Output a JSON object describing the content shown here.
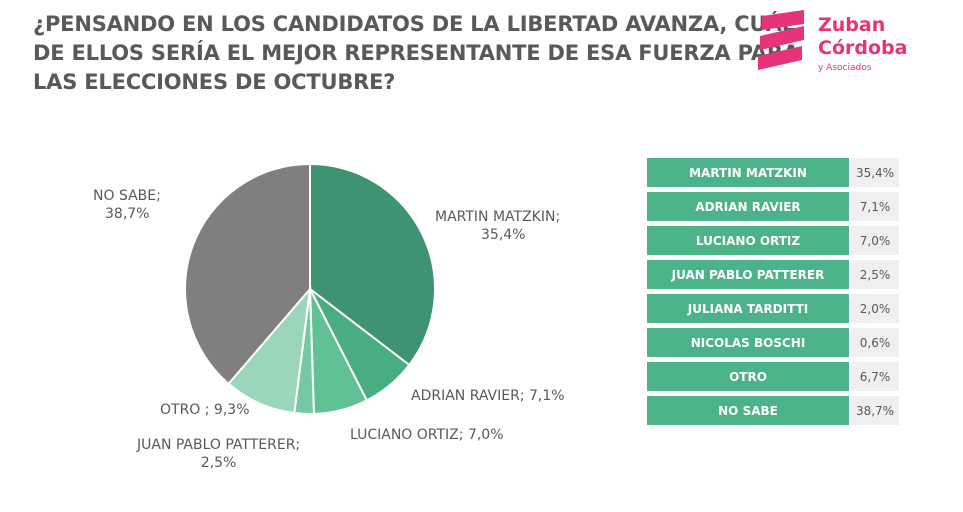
{
  "title": {
    "line1": "¿PENSANDO EN LOS CANDIDATOS DE LA LIBERTAD AVANZA, CUÁL",
    "line2": "DE ELLOS SERÍA EL MEJOR REPRESENTANTE DE ESA FUERZA PARA",
    "line3": "LAS ELECCIONES DE OCTUBRE?"
  },
  "logo": {
    "name_line1": "Zuban",
    "name_line2": "Córdoba",
    "tagline": "y Asociados",
    "color": "#e6337a"
  },
  "chart_data": {
    "type": "pie",
    "slices": [
      {
        "label": "MARTIN MATZKIN",
        "value": 35.4,
        "display_label": "MARTIN MATZKIN;",
        "display_value": "35,4%",
        "color": "#3e9470"
      },
      {
        "label": "ADRIAN RAVIER",
        "value": 7.1,
        "display_label": "ADRIAN RAVIER; 7,1%",
        "display_value": "",
        "color": "#49ad82"
      },
      {
        "label": "LUCIANO ORTIZ",
        "value": 7.0,
        "display_label": "LUCIANO ORTIZ; 7,0%",
        "display_value": "",
        "color": "#5fc194"
      },
      {
        "label": "JUAN PABLO PATTERER",
        "value": 2.5,
        "display_label": "JUAN PABLO PATTERER;",
        "display_value": "2,5%",
        "color": "#74c9a3"
      },
      {
        "label": "OTRO",
        "value": 9.3,
        "display_label": "OTRO ; 9,3%",
        "display_value": "",
        "color": "#9bd6bb"
      },
      {
        "label": "NO SABE",
        "value": 38.7,
        "display_label": "NO SABE;",
        "display_value": "38,7%",
        "color": "#7f7f7f"
      }
    ]
  },
  "table": {
    "rows": [
      {
        "name": "MARTIN MATZKIN",
        "value": "35,4%"
      },
      {
        "name": "ADRIAN RAVIER",
        "value": "7,1%"
      },
      {
        "name": "LUCIANO ORTIZ",
        "value": "7,0%"
      },
      {
        "name": "JUAN PABLO PATTERER",
        "value": "2,5%"
      },
      {
        "name": "JULIANA TARDITTI",
        "value": "2,0%"
      },
      {
        "name": "NICOLAS BOSCHI",
        "value": "0,6%"
      },
      {
        "name": "OTRO",
        "value": "6,7%"
      },
      {
        "name": "NO SABE",
        "value": "38,7%"
      }
    ]
  }
}
